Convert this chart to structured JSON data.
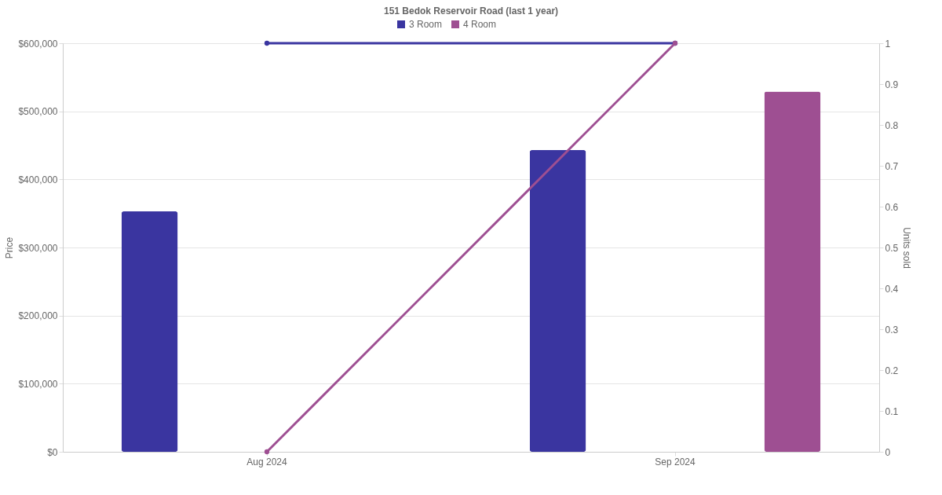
{
  "chart_data": {
    "type": "bar",
    "title": "151 Bedok Reservoir Road (last 1 year)",
    "ylabel": "Price",
    "y2label": "Units sold",
    "categories": [
      "Aug 2024",
      "Sep 2024"
    ],
    "series": [
      {
        "name": "3 Room",
        "color": "#3a35a0",
        "values": [
          353000,
          443000
        ]
      },
      {
        "name": "4 Room",
        "color": "#9e4f92",
        "values": [
          null,
          529000
        ]
      },
      {
        "type": "line",
        "axis": "y2",
        "color": "#3a35a0",
        "values": [
          1,
          1
        ],
        "marker": "circle"
      },
      {
        "type": "line",
        "axis": "y2",
        "color": "#9e4f92",
        "values": [
          0,
          1
        ],
        "marker": "circle"
      }
    ],
    "ylim": [
      0,
      600000
    ],
    "yticks": [
      {
        "value": 0,
        "label": "$0"
      },
      {
        "value": 100000,
        "label": "$100,000"
      },
      {
        "value": 200000,
        "label": "$200,000"
      },
      {
        "value": 300000,
        "label": "$300,000"
      },
      {
        "value": 400000,
        "label": "$400,000"
      },
      {
        "value": 500000,
        "label": "$500,000"
      },
      {
        "value": 600000,
        "label": "$600,000"
      }
    ],
    "y2lim": [
      0,
      1
    ],
    "y2ticks": [
      {
        "value": 0,
        "label": "0"
      },
      0.1,
      0.2,
      0.3,
      0.4,
      0.5,
      0.6,
      0.7,
      0.8,
      0.9,
      {
        "value": 1,
        "label": "1"
      }
    ],
    "grid": "y",
    "legend": "top"
  }
}
